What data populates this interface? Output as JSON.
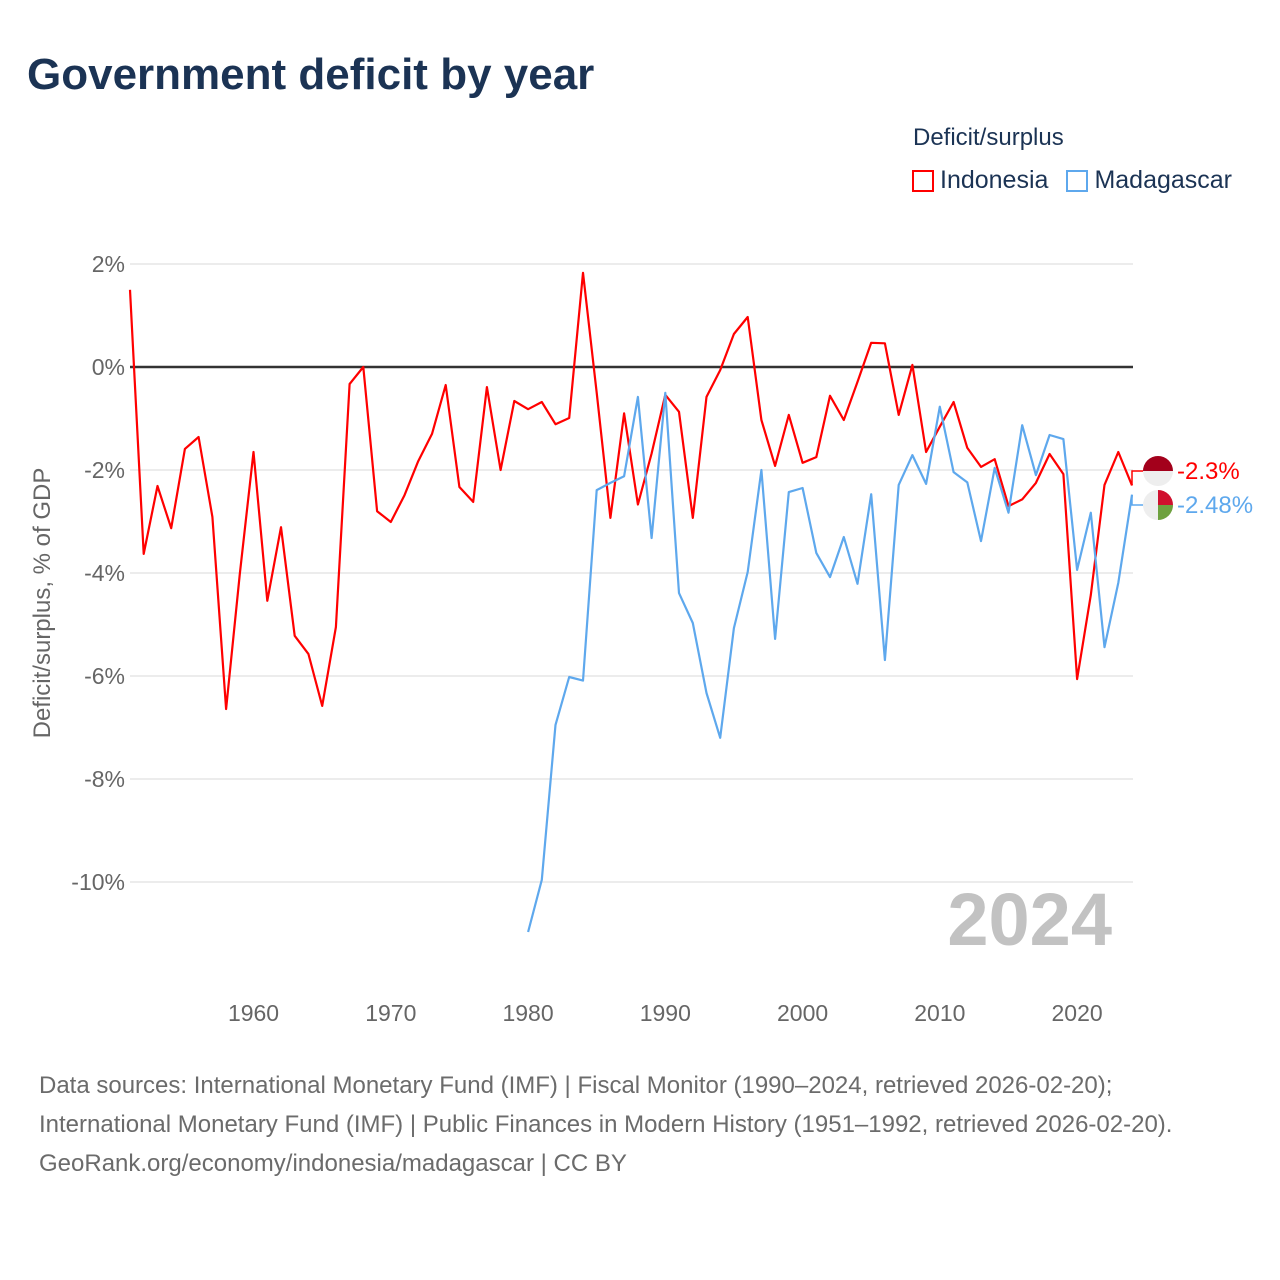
{
  "title": "Government deficit by year",
  "legend": {
    "title": "Deficit/surplus",
    "items": [
      {
        "label": "Indonesia",
        "color": "#ff0000"
      },
      {
        "label": "Madagascar",
        "color": "#5ea8ed"
      }
    ]
  },
  "watermark_year": "2024",
  "footer": {
    "sources": "Data sources: International Monetary Fund (IMF) | Fiscal Monitor (1990–2024, retrieved 2026-02-20); International Monetary Fund (IMF) | Public Finances in Modern History (1951–1992, retrieved 2026-02-20).",
    "credit": "GeoRank.org/economy/indonesia/madagascar | CC BY"
  },
  "chart_data": {
    "type": "line",
    "title": "Government deficit by year",
    "xlabel": "",
    "ylabel": "Deficit/surplus, % of GDP",
    "xlim": [
      1951,
      2024
    ],
    "ylim": [
      -11.5,
      2.2
    ],
    "xticks": [
      1960,
      1970,
      1980,
      1990,
      2000,
      2010,
      2020
    ],
    "yticks": [
      2,
      0,
      -2,
      -4,
      -6,
      -8,
      -10
    ],
    "ytick_labels": [
      "2%",
      "0%",
      "-2%",
      "-4%",
      "-6%",
      "-8%",
      "-10%"
    ],
    "grid": true,
    "legend_position": "top-right",
    "series": [
      {
        "name": "Indonesia",
        "color": "#ff0000",
        "start_year": 1951,
        "end_label": "-2.3%",
        "values": [
          1.5,
          -3.63,
          -2.31,
          -3.13,
          -1.59,
          -1.36,
          -2.91,
          -6.64,
          -4.02,
          -1.65,
          -4.54,
          -3.11,
          -5.22,
          -5.57,
          -6.58,
          -5.05,
          -0.33,
          0,
          -2.8,
          -3.01,
          -2.49,
          -1.83,
          -1.3,
          -0.35,
          -2.33,
          -2.62,
          -0.39,
          -2.0,
          -0.66,
          -0.82,
          -0.68,
          -1.11,
          -0.99,
          1.83,
          -0.5,
          -2.93,
          -0.9,
          -2.67,
          -1.68,
          -0.54,
          -0.87,
          -2.93,
          -0.58,
          -0.06,
          0.64,
          0.97,
          -1.03,
          -1.92,
          -0.93,
          -1.86,
          -1.75,
          -0.56,
          -1.03,
          -0.29,
          0.47,
          0.46,
          -0.93,
          0.04,
          -1.65,
          -1.16,
          -0.68,
          -1.57,
          -1.94,
          -1.79,
          -2.7,
          -2.57,
          -2.25,
          -1.69,
          -2.08,
          -6.06,
          -4.43,
          -2.29,
          -1.65,
          -2.3
        ]
      },
      {
        "name": "Madagascar",
        "color": "#5ea8ed",
        "start_year": 1980,
        "end_label": "-2.48%",
        "values": [
          -10.97,
          -9.96,
          -6.95,
          -6.02,
          -6.09,
          -2.39,
          -2.25,
          -2.12,
          -0.58,
          -3.32,
          -0.5,
          -4.39,
          -4.97,
          -6.33,
          -7.2,
          -5.07,
          -3.98,
          -2.0,
          -5.28,
          -2.43,
          -2.35,
          -3.61,
          -4.08,
          -3.3,
          -4.21,
          -2.47,
          -5.69,
          -2.29,
          -1.71,
          -2.27,
          -0.77,
          -2.04,
          -2.24,
          -3.38,
          -1.96,
          -2.83,
          -1.13,
          -2.1,
          -1.32,
          -1.4,
          -3.94,
          -2.83,
          -5.44,
          -4.19,
          -2.48
        ]
      }
    ]
  }
}
